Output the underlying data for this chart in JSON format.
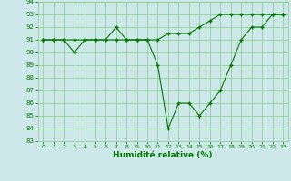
{
  "x": [
    0,
    1,
    2,
    3,
    4,
    5,
    6,
    7,
    8,
    9,
    10,
    11,
    12,
    13,
    14,
    15,
    16,
    17,
    18,
    19,
    20,
    21,
    22,
    23
  ],
  "line1_y": [
    91,
    91,
    91,
    91,
    91,
    91,
    91,
    91,
    91,
    91,
    91,
    91,
    91.5,
    91.5,
    91.5,
    92,
    92.5,
    93,
    93,
    93,
    93,
    93,
    93,
    93
  ],
  "line2_y": [
    91,
    91,
    91,
    90,
    91,
    91,
    91,
    92,
    91,
    91,
    91,
    89,
    84,
    86,
    86,
    85,
    86,
    87,
    89,
    91,
    92,
    92,
    93,
    93
  ],
  "bg_color": "#cce8e8",
  "grid_color": "#88cc88",
  "line_color": "#007700",
  "xlabel": "Humidité relative (%)",
  "xlabel_color": "#007700",
  "tick_color": "#007700",
  "ylim": [
    83,
    94
  ],
  "xlim": [
    -0.5,
    23.5
  ],
  "yticks": [
    83,
    84,
    85,
    86,
    87,
    88,
    89,
    90,
    91,
    92,
    93,
    94
  ],
  "xticks": [
    0,
    1,
    2,
    3,
    4,
    5,
    6,
    7,
    8,
    9,
    10,
    11,
    12,
    13,
    14,
    15,
    16,
    17,
    18,
    19,
    20,
    21,
    22,
    23
  ]
}
